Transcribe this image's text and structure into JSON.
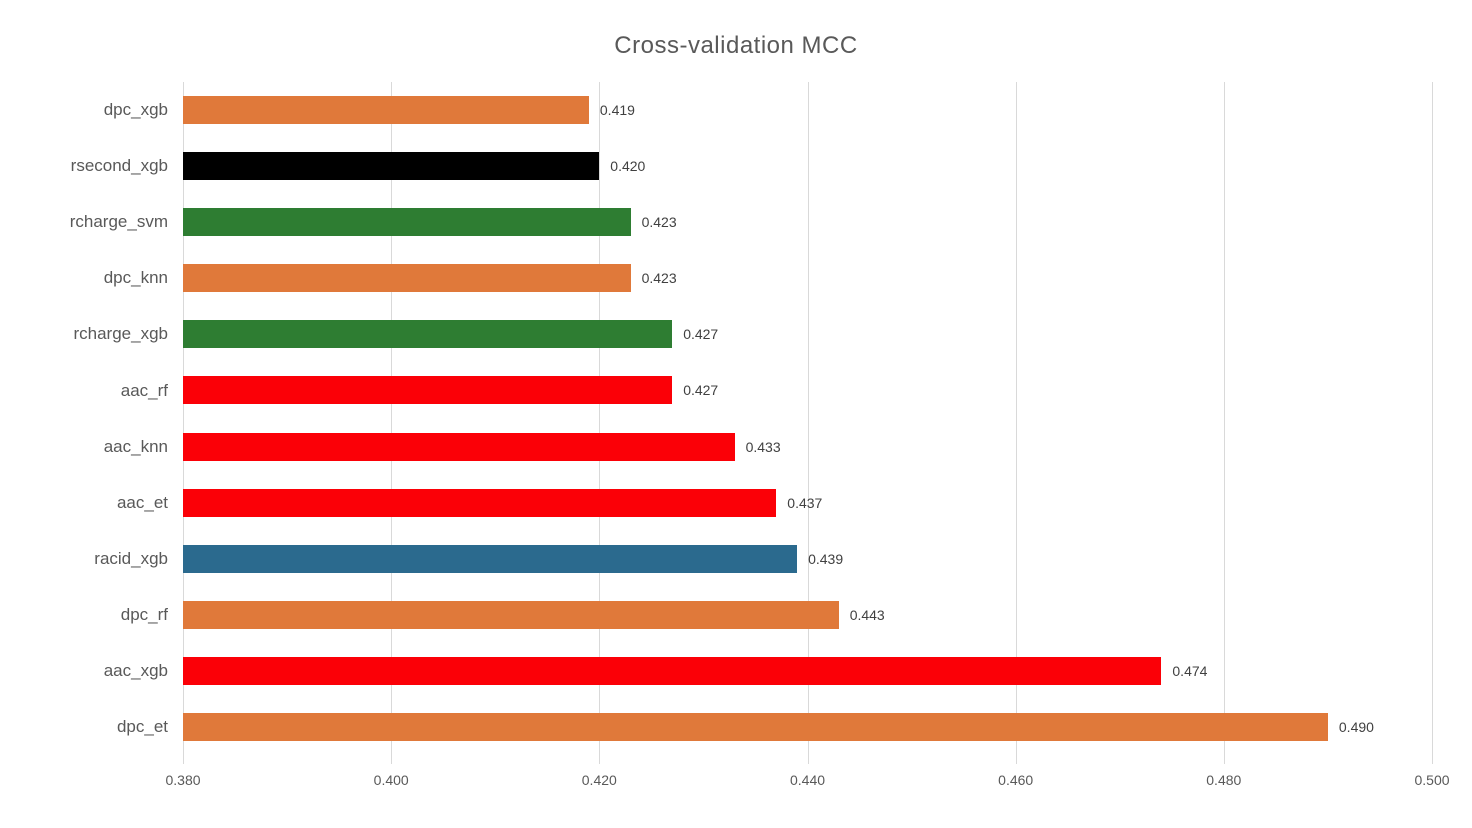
{
  "chart_data": {
    "type": "bar",
    "orientation": "horizontal",
    "title": "Cross-validation MCC",
    "xlabel": "",
    "ylabel": "",
    "xlim": [
      0.38,
      0.5
    ],
    "x_ticks": [
      0.38,
      0.4,
      0.42,
      0.44,
      0.46,
      0.48,
      0.5
    ],
    "x_tick_labels": [
      "0.380",
      "0.400",
      "0.420",
      "0.440",
      "0.460",
      "0.480",
      "0.500"
    ],
    "grid": "vertical-light-gray",
    "legend": "none",
    "categories": [
      "dpc_xgb",
      "rsecond_xgb",
      "rcharge_svm",
      "dpc_knn",
      "rcharge_xgb",
      "aac_rf",
      "aac_knn",
      "aac_et",
      "racid_xgb",
      "dpc_rf",
      "aac_xgb",
      "dpc_et"
    ],
    "values": [
      0.419,
      0.42,
      0.423,
      0.423,
      0.427,
      0.427,
      0.433,
      0.437,
      0.439,
      0.443,
      0.474,
      0.49
    ],
    "value_labels": [
      "0.419",
      "0.420",
      "0.423",
      "0.423",
      "0.427",
      "0.427",
      "0.433",
      "0.437",
      "0.439",
      "0.443",
      "0.474",
      "0.490"
    ],
    "bar_colors": [
      "#e0793a",
      "#000000",
      "#2e7d32",
      "#e0793a",
      "#2e7d32",
      "#fb0007",
      "#fb0007",
      "#fb0007",
      "#2b6a8e",
      "#e0793a",
      "#fb0007",
      "#e0793a"
    ]
  },
  "colors": {
    "orange": "#e0793a",
    "black": "#000000",
    "green": "#2e7d32",
    "red": "#fb0007",
    "blue": "#2b6a8e",
    "gridline": "#d9d9d9",
    "title_text": "#595959",
    "axis_text": "#595959",
    "value_text": "#404040",
    "background": "#ffffff"
  }
}
